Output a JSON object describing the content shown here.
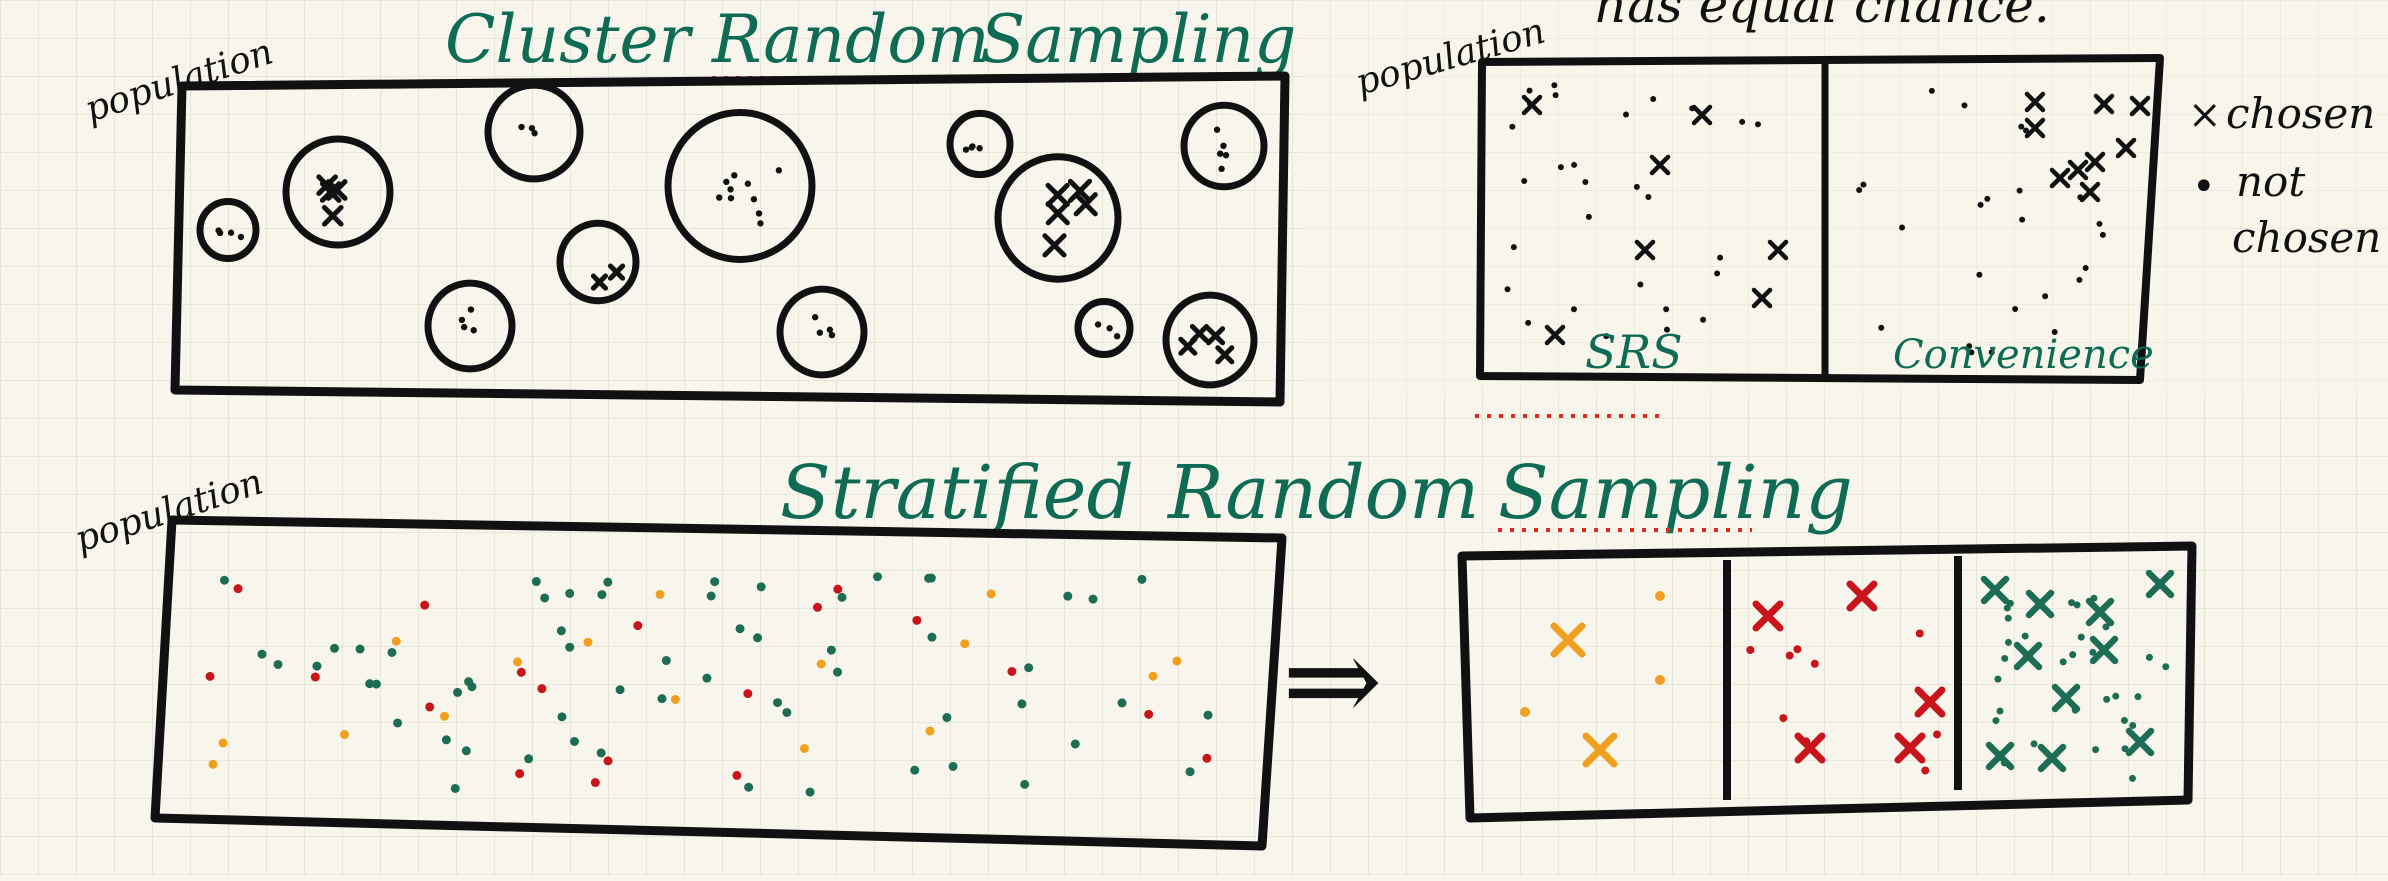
{
  "colors": {
    "paper": "#f8f6ec",
    "grid": "#dcdccd",
    "ink": "#111111",
    "heading": "#0f6b54",
    "underline": "#e02a20",
    "green": "#1d6d55",
    "red": "#c8141a",
    "orange": "#f0a01e"
  },
  "cluster": {
    "population_label": "population",
    "title_cluster": "Cluster",
    "title_random": "Random",
    "title_sampling": "Sampling"
  },
  "convenience": {
    "population_label": "population",
    "top_text": "has equal chance.",
    "srs_label": "SRS",
    "convenience_label": "Convenience"
  },
  "legend": {
    "chosen_symbol": "×",
    "chosen_label": "chosen",
    "not_chosen_symbol": "•",
    "not_chosen_line1": "not",
    "not_chosen_line2": "chosen"
  },
  "stratified": {
    "population_label": "population",
    "title_stratified": "Stratified",
    "title_random": "Random",
    "title_sampling": "Sampling",
    "arrow": "⇒"
  }
}
